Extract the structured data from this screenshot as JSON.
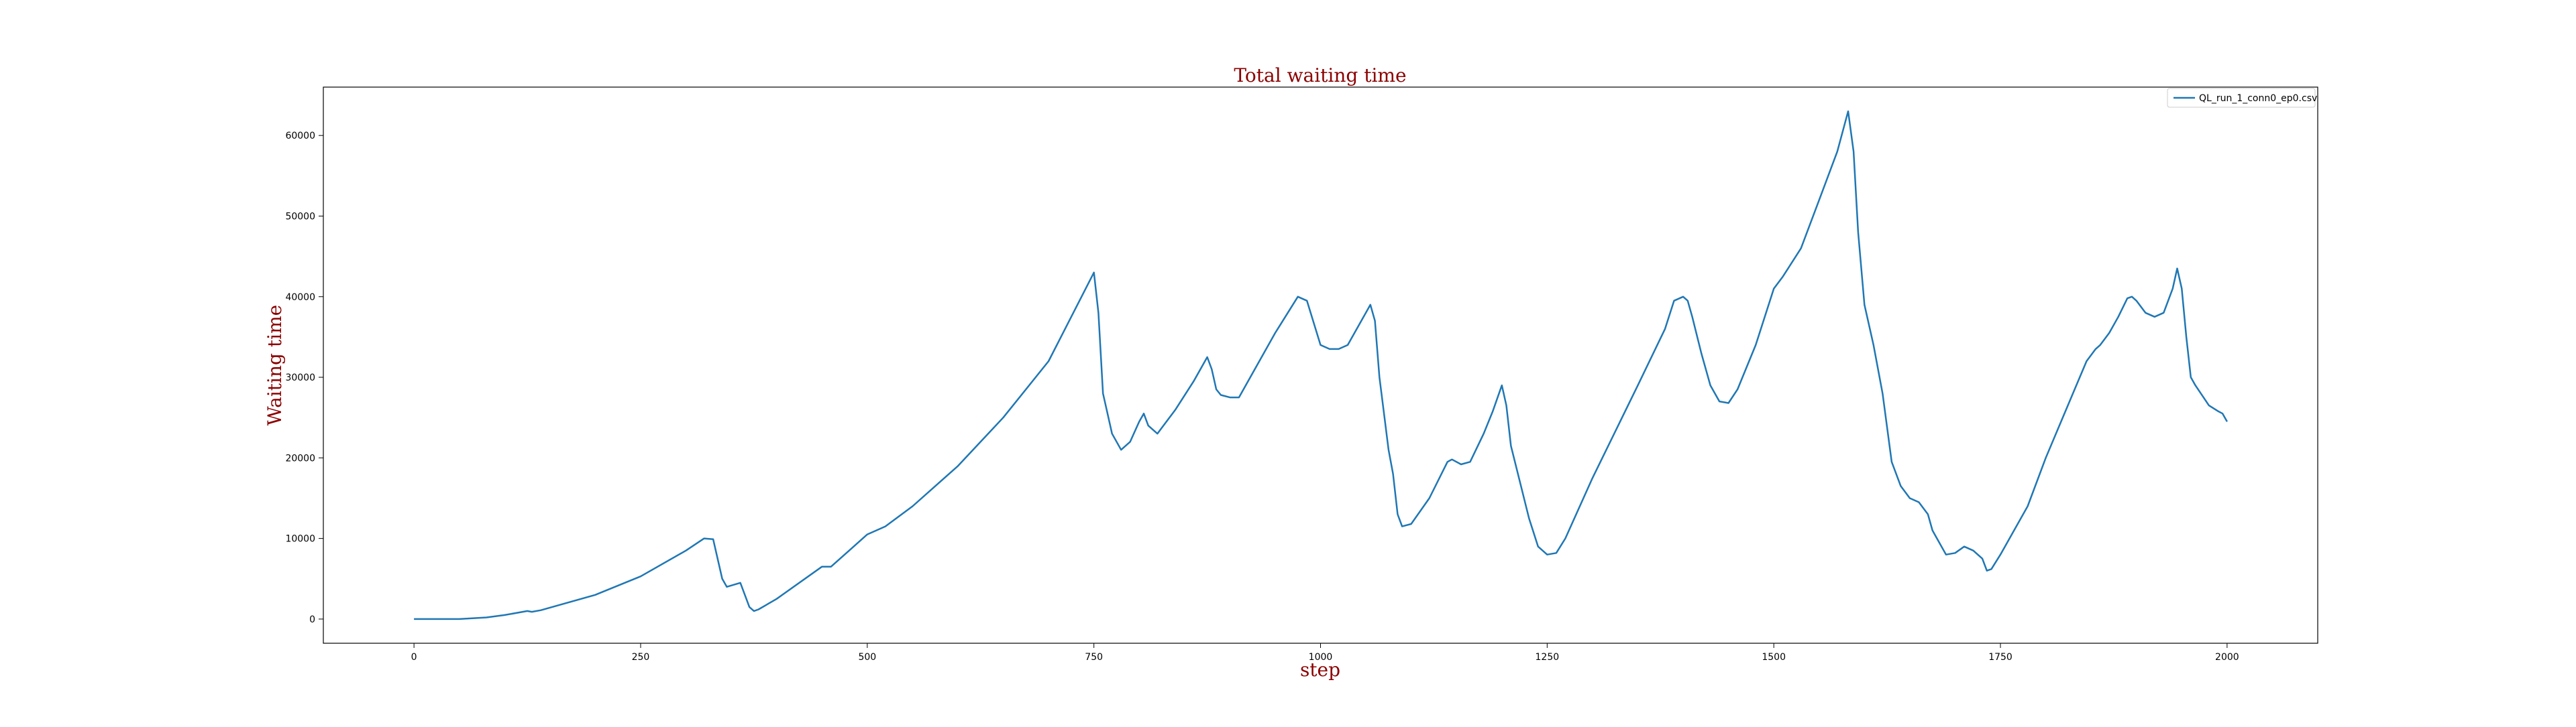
{
  "chart_data": {
    "type": "line",
    "title": "Total waiting time",
    "xlabel": "step",
    "ylabel": "Waiting time",
    "xlim": [
      -100,
      2100
    ],
    "ylim": [
      -3000,
      66000
    ],
    "x_ticks": [
      0,
      250,
      500,
      750,
      1000,
      1250,
      1500,
      1750,
      2000
    ],
    "y_ticks": [
      0,
      10000,
      20000,
      30000,
      40000,
      50000,
      60000
    ],
    "grid": false,
    "legend_position": "top-right",
    "colors": {
      "series": "#1f77b4",
      "title": "#8b0000",
      "axis": "#000000"
    },
    "series": [
      {
        "name": "QL_run_1_conn0_ep0.csv",
        "points": [
          [
            0,
            0
          ],
          [
            50,
            0
          ],
          [
            80,
            200
          ],
          [
            100,
            500
          ],
          [
            125,
            1000
          ],
          [
            130,
            900
          ],
          [
            140,
            1100
          ],
          [
            200,
            3000
          ],
          [
            250,
            5300
          ],
          [
            300,
            8500
          ],
          [
            320,
            10000
          ],
          [
            330,
            9900
          ],
          [
            340,
            5000
          ],
          [
            345,
            4000
          ],
          [
            360,
            4500
          ],
          [
            370,
            1500
          ],
          [
            375,
            1000
          ],
          [
            380,
            1200
          ],
          [
            400,
            2500
          ],
          [
            450,
            6500
          ],
          [
            460,
            6500
          ],
          [
            480,
            8500
          ],
          [
            500,
            10500
          ],
          [
            520,
            11500
          ],
          [
            550,
            14000
          ],
          [
            600,
            19000
          ],
          [
            650,
            25000
          ],
          [
            700,
            32000
          ],
          [
            750,
            43000
          ],
          [
            755,
            38000
          ],
          [
            760,
            28000
          ],
          [
            770,
            23000
          ],
          [
            780,
            21000
          ],
          [
            790,
            22000
          ],
          [
            800,
            24500
          ],
          [
            805,
            25500
          ],
          [
            810,
            24000
          ],
          [
            820,
            23000
          ],
          [
            840,
            26000
          ],
          [
            860,
            29500
          ],
          [
            875,
            32500
          ],
          [
            880,
            31000
          ],
          [
            885,
            28500
          ],
          [
            890,
            27800
          ],
          [
            900,
            27500
          ],
          [
            910,
            27500
          ],
          [
            930,
            31500
          ],
          [
            950,
            35500
          ],
          [
            975,
            40000
          ],
          [
            985,
            39500
          ],
          [
            1000,
            34000
          ],
          [
            1010,
            33500
          ],
          [
            1020,
            33500
          ],
          [
            1030,
            34000
          ],
          [
            1055,
            39000
          ],
          [
            1060,
            37000
          ],
          [
            1065,
            30000
          ],
          [
            1075,
            21000
          ],
          [
            1080,
            18000
          ],
          [
            1085,
            13000
          ],
          [
            1090,
            11500
          ],
          [
            1100,
            11800
          ],
          [
            1120,
            15000
          ],
          [
            1140,
            19500
          ],
          [
            1145,
            19800
          ],
          [
            1155,
            19200
          ],
          [
            1165,
            19500
          ],
          [
            1180,
            23000
          ],
          [
            1190,
            25800
          ],
          [
            1200,
            29000
          ],
          [
            1205,
            26500
          ],
          [
            1210,
            21500
          ],
          [
            1220,
            17000
          ],
          [
            1230,
            12500
          ],
          [
            1240,
            9000
          ],
          [
            1250,
            8000
          ],
          [
            1260,
            8200
          ],
          [
            1270,
            10000
          ],
          [
            1300,
            17500
          ],
          [
            1350,
            29000
          ],
          [
            1380,
            36000
          ],
          [
            1390,
            39500
          ],
          [
            1400,
            40000
          ],
          [
            1405,
            39500
          ],
          [
            1410,
            37500
          ],
          [
            1420,
            33000
          ],
          [
            1430,
            29000
          ],
          [
            1440,
            27000
          ],
          [
            1450,
            26800
          ],
          [
            1460,
            28500
          ],
          [
            1480,
            34000
          ],
          [
            1500,
            41000
          ],
          [
            1510,
            42500
          ],
          [
            1530,
            46000
          ],
          [
            1550,
            52000
          ],
          [
            1570,
            58000
          ],
          [
            1582,
            63000
          ],
          [
            1588,
            58000
          ],
          [
            1593,
            48000
          ],
          [
            1600,
            39000
          ],
          [
            1610,
            34000
          ],
          [
            1620,
            28000
          ],
          [
            1630,
            19500
          ],
          [
            1640,
            16500
          ],
          [
            1650,
            15000
          ],
          [
            1660,
            14500
          ],
          [
            1670,
            13000
          ],
          [
            1675,
            11000
          ],
          [
            1680,
            10000
          ],
          [
            1690,
            8000
          ],
          [
            1700,
            8200
          ],
          [
            1710,
            9000
          ],
          [
            1720,
            8500
          ],
          [
            1730,
            7500
          ],
          [
            1735,
            6000
          ],
          [
            1740,
            6200
          ],
          [
            1750,
            8000
          ],
          [
            1780,
            14000
          ],
          [
            1800,
            20000
          ],
          [
            1830,
            28000
          ],
          [
            1845,
            32000
          ],
          [
            1855,
            33500
          ],
          [
            1860,
            34000
          ],
          [
            1870,
            35500
          ],
          [
            1880,
            37500
          ],
          [
            1890,
            39800
          ],
          [
            1895,
            40000
          ],
          [
            1900,
            39500
          ],
          [
            1910,
            38000
          ],
          [
            1920,
            37500
          ],
          [
            1930,
            38000
          ],
          [
            1940,
            41000
          ],
          [
            1945,
            43500
          ],
          [
            1950,
            41000
          ],
          [
            1955,
            35000
          ],
          [
            1960,
            30000
          ],
          [
            1965,
            29000
          ],
          [
            1980,
            26500
          ],
          [
            1990,
            25800
          ],
          [
            1995,
            25500
          ],
          [
            2000,
            24500
          ]
        ]
      }
    ]
  }
}
